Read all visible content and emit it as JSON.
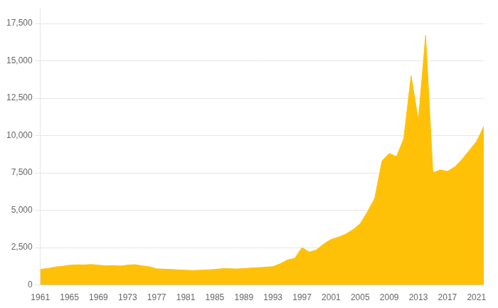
{
  "chart_data": {
    "type": "area",
    "x": [
      1961,
      1962,
      1963,
      1964,
      1965,
      1966,
      1967,
      1968,
      1969,
      1970,
      1971,
      1972,
      1973,
      1974,
      1975,
      1976,
      1977,
      1978,
      1979,
      1980,
      1981,
      1982,
      1983,
      1984,
      1985,
      1986,
      1987,
      1988,
      1989,
      1990,
      1991,
      1992,
      1993,
      1994,
      1995,
      1996,
      1997,
      1998,
      1999,
      2000,
      2001,
      2002,
      2003,
      2004,
      2005,
      2006,
      2007,
      2008,
      2009,
      2010,
      2011,
      2012,
      2013,
      2014,
      2015,
      2016,
      2017,
      2018,
      2019,
      2020,
      2021,
      2022
    ],
    "values": [
      1050,
      1100,
      1200,
      1250,
      1320,
      1350,
      1340,
      1370,
      1330,
      1280,
      1300,
      1270,
      1330,
      1360,
      1280,
      1220,
      1080,
      1060,
      1040,
      1010,
      990,
      970,
      990,
      1010,
      1040,
      1090,
      1090,
      1070,
      1100,
      1130,
      1160,
      1190,
      1230,
      1420,
      1680,
      1780,
      2500,
      2200,
      2350,
      2750,
      3050,
      3200,
      3400,
      3700,
      4100,
      4900,
      5800,
      8300,
      8800,
      8600,
      9800,
      14000,
      11000,
      16700,
      7500,
      7700,
      7600,
      7900,
      8400,
      9000,
      9600,
      10600
    ],
    "color": "#FFC107",
    "xlim": [
      1961,
      2022
    ],
    "xticks": [
      1961,
      1965,
      1969,
      1973,
      1977,
      1981,
      1985,
      1989,
      1993,
      1997,
      2001,
      2005,
      2009,
      2013,
      2017,
      2021
    ],
    "ylim": [
      0,
      18500
    ],
    "yticks": [
      0,
      {
        "value": 2500,
        "label": "2,500"
      },
      {
        "value": 5000,
        "label": "5,000"
      },
      {
        "value": 7500,
        "label": "7,500"
      },
      {
        "value": 10000,
        "label": "10,000"
      },
      {
        "value": 12500,
        "label": "12,500"
      },
      {
        "value": 15000,
        "label": "15,000"
      },
      {
        "value": 17500,
        "label": "17,500"
      }
    ],
    "grid": "y",
    "legend": false
  }
}
